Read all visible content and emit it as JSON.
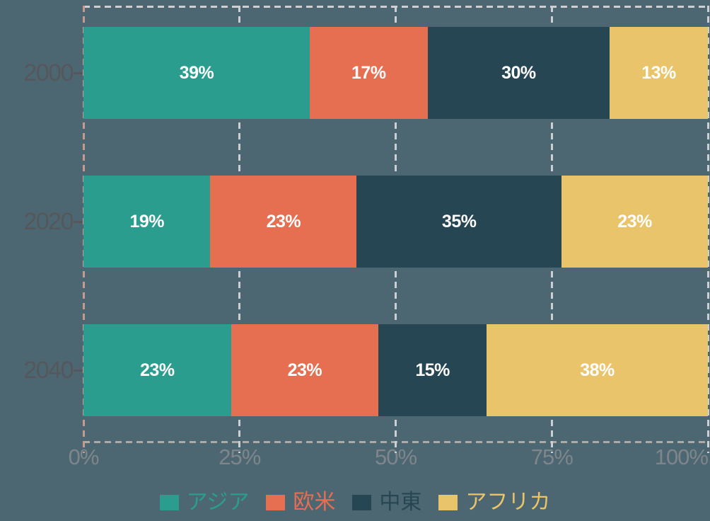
{
  "chart_data": {
    "type": "bar",
    "orientation": "horizontal",
    "stacked": true,
    "categories": [
      "2000",
      "2020",
      "2040"
    ],
    "series": [
      {
        "name": "アジア",
        "color": "#2a9d8f",
        "values": [
          39,
          19,
          23
        ]
      },
      {
        "name": "欧米",
        "color": "#e76f51",
        "values": [
          17,
          23,
          23
        ]
      },
      {
        "name": "中東",
        "color": "#264653",
        "values": [
          30,
          35,
          15
        ]
      },
      {
        "name": "アフリカ",
        "color": "#e9c46a",
        "values": [
          13,
          23,
          38
        ]
      }
    ],
    "bar_value_labels": [
      [
        "39%",
        "17%",
        "30%",
        "13%"
      ],
      [
        "19%",
        "23%",
        "35%",
        "23%"
      ],
      [
        "23%",
        "23%",
        "15%",
        "38%"
      ]
    ],
    "x_ticks": [
      "0%",
      "25%",
      "50%",
      "75%",
      "100%"
    ],
    "xlim": [
      0,
      100
    ],
    "grid": true,
    "legend_position": "bottom"
  },
  "style": {
    "background": "#4d6772",
    "grid_color": "#ccd0d3",
    "zero_line_color": "#c69a8e",
    "axis_line_color": "#ada9a5",
    "category_label_color": "#54585c",
    "tick_label_color": "#7e868b",
    "bar_value_color": "#ffffff"
  }
}
